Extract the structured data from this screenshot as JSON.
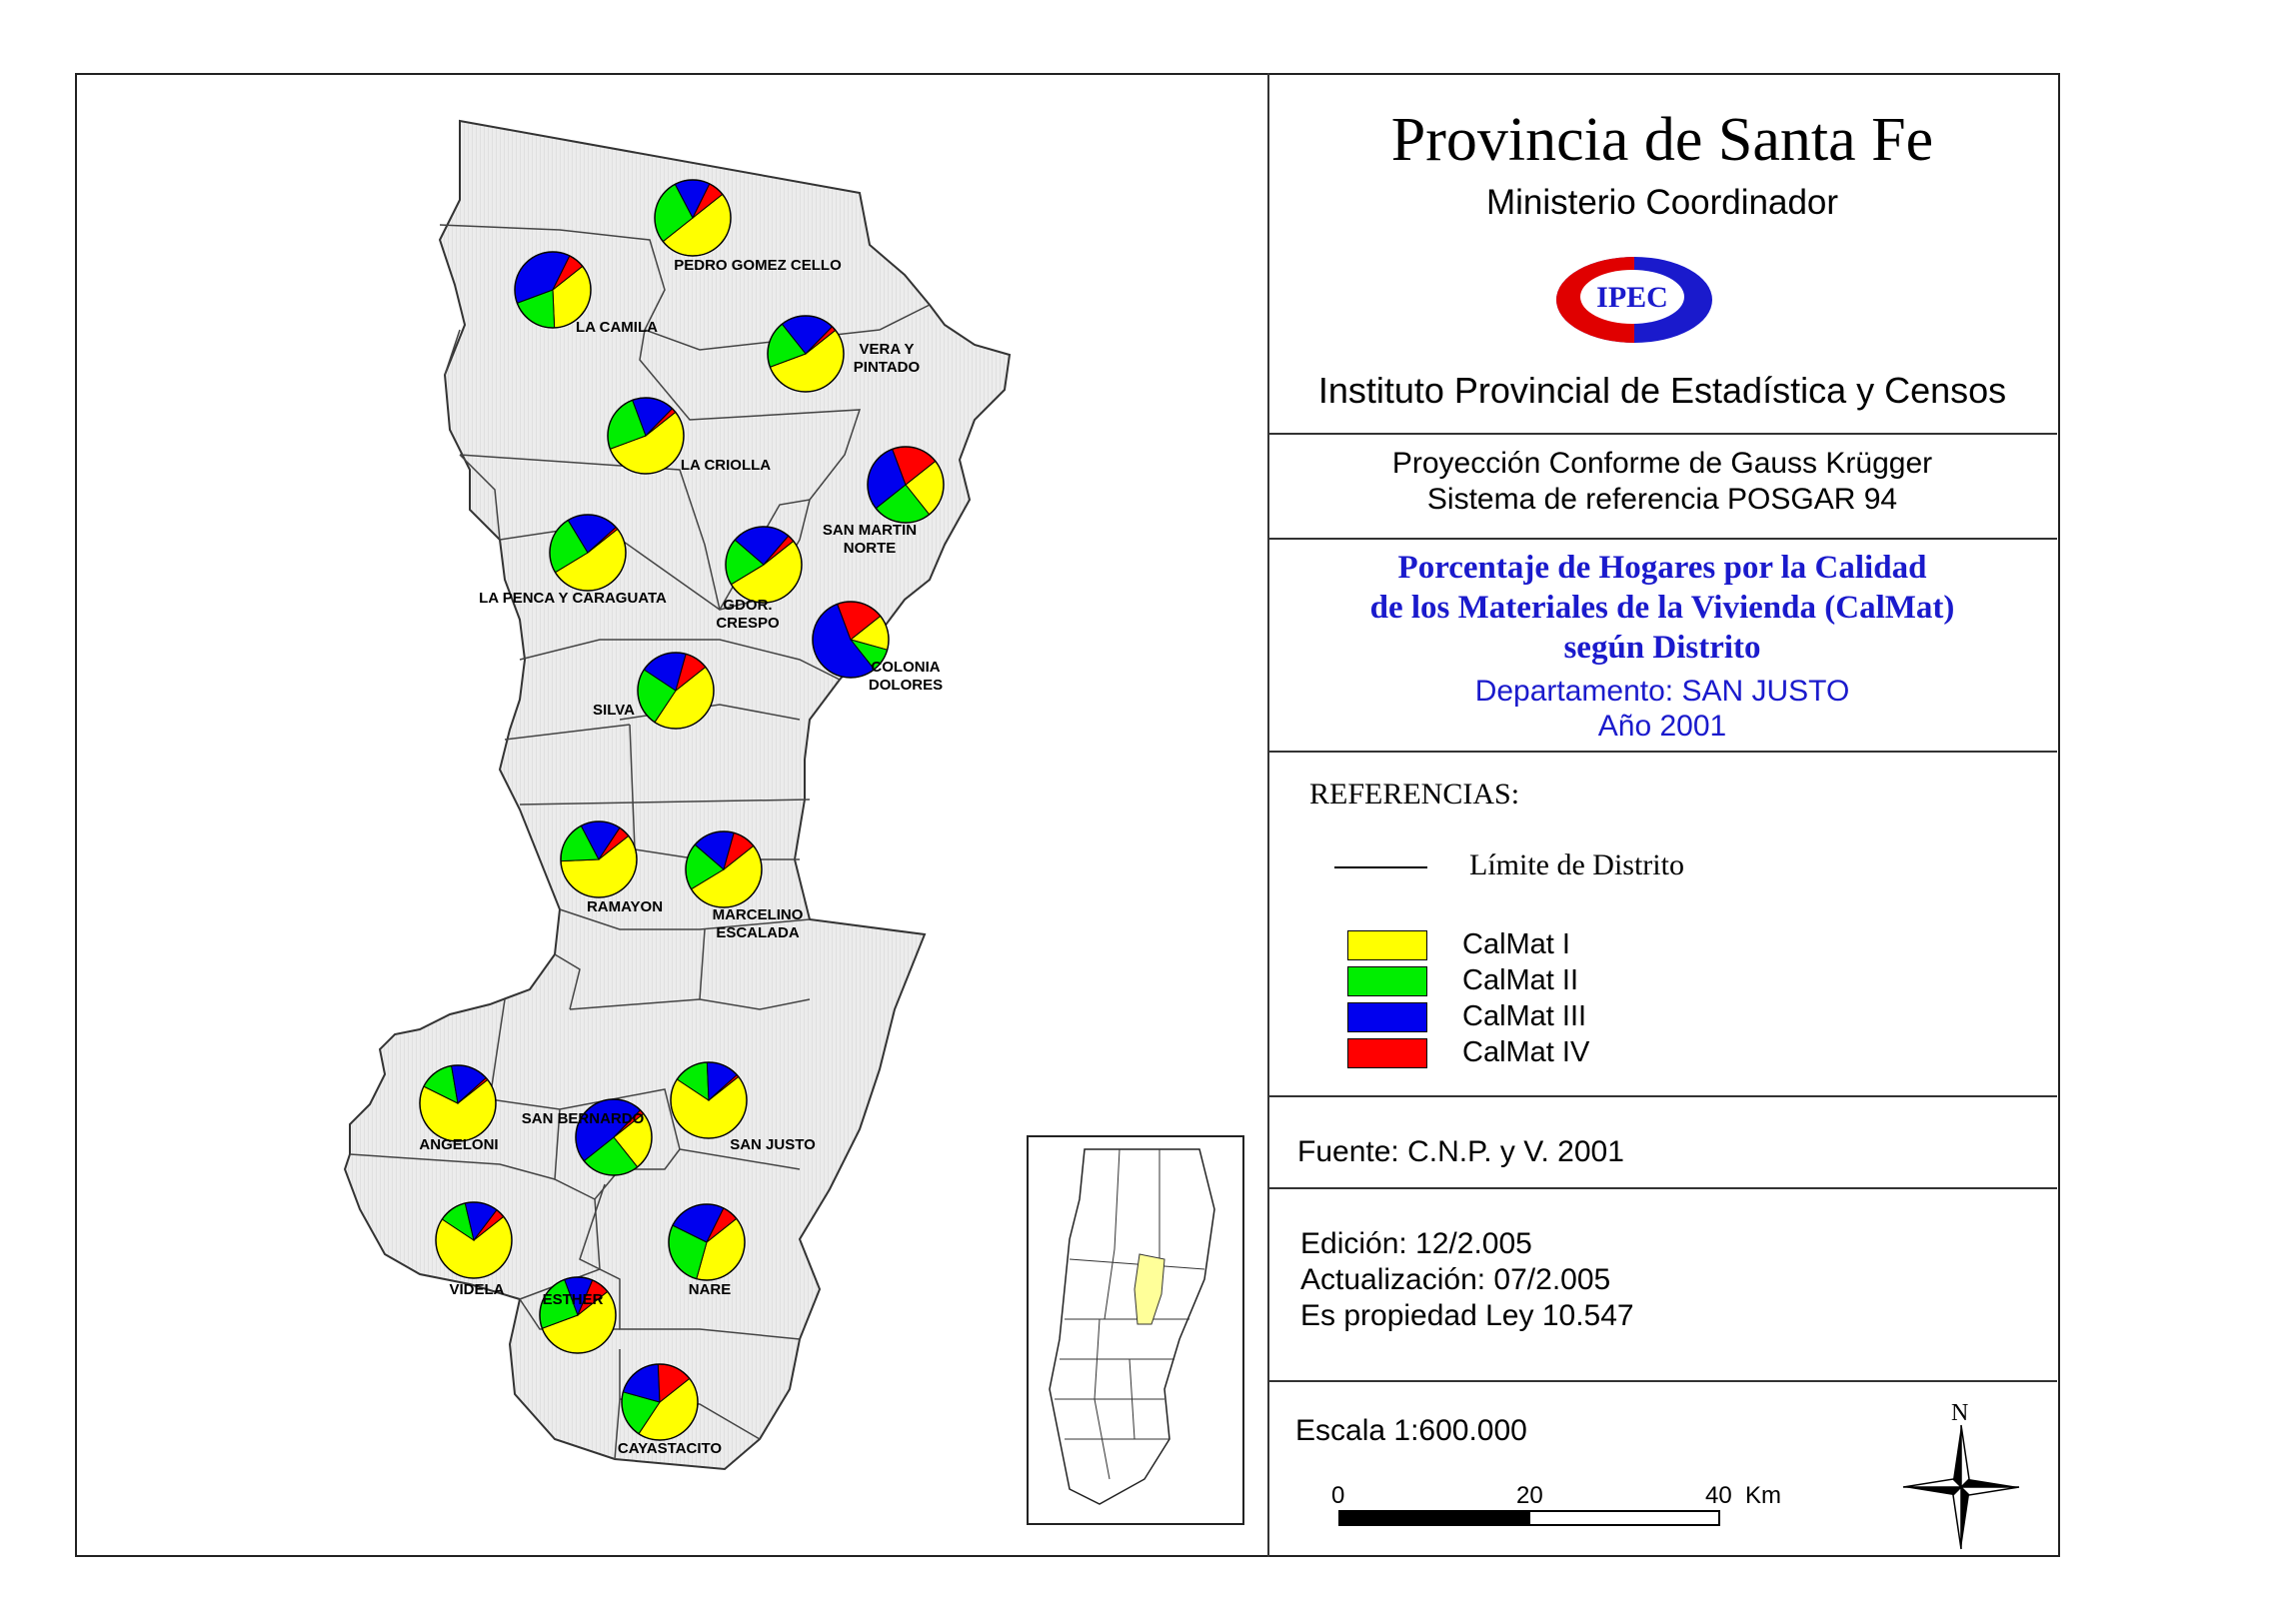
{
  "colors": {
    "calmat1": "#ffff00",
    "calmat2": "#00ee00",
    "calmat3": "#0000ee",
    "calmat4": "#ff0000",
    "mapfill": "#e8e8e8",
    "highlight": "#ffff99",
    "blue": "#1a1acc"
  },
  "header": {
    "title": "Provincia de Santa Fe",
    "ministry": "Ministerio Coordinador",
    "logo_text": "IPEC",
    "institute": "Instituto Provincial de Estadística y Censos"
  },
  "projection": {
    "line1": "Proyección Conforme de Gauss Krügger",
    "line2": "Sistema de referencia POSGAR 94"
  },
  "subject": {
    "line1": "Porcentaje de Hogares por la Calidad",
    "line2": "de los Materiales de la Vivienda (CalMat)",
    "line3": "según Distrito",
    "line4": "Departamento:  SAN JUSTO",
    "line5": "Año 2001"
  },
  "legend": {
    "title": "REFERENCIAS:",
    "boundary_label": "Límite de Distrito",
    "items": [
      {
        "label": "CalMat I",
        "color_key": "calmat1"
      },
      {
        "label": "CalMat II",
        "color_key": "calmat2"
      },
      {
        "label": "CalMat III",
        "color_key": "calmat3"
      },
      {
        "label": "CalMat IV",
        "color_key": "calmat4"
      }
    ]
  },
  "source": {
    "text": "Fuente:  C.N.P. y V. 2001"
  },
  "edition": {
    "line1": "Edición:  12/2.005",
    "line2": "Actualización:  07/2.005",
    "line3": "Es propiedad Ley 10.547"
  },
  "scale": {
    "label": "Escala 1:600.000",
    "ticks": [
      "0",
      "20",
      "40"
    ],
    "unit": "Km",
    "north": "N"
  },
  "districts": [
    {
      "name": "PEDRO GOMEZ CELLO",
      "lines": [
        "PEDRO GOMEZ CELLO"
      ],
      "values": [
        50,
        28,
        15,
        7
      ]
    },
    {
      "name": "LA CAMILA",
      "lines": [
        "LA CAMILA"
      ],
      "values": [
        35,
        20,
        38,
        7
      ]
    },
    {
      "name": "VERA Y PINTADO",
      "lines": [
        "VERA Y",
        "PINTADO"
      ],
      "values": [
        55,
        20,
        23,
        2
      ]
    },
    {
      "name": "LA CRIOLLA",
      "lines": [
        "LA CRIOLLA"
      ],
      "values": [
        55,
        25,
        18,
        2
      ]
    },
    {
      "name": "SAN MARTIN NORTE",
      "lines": [
        "SAN MARTIN",
        "NORTE"
      ],
      "values": [
        25,
        25,
        30,
        20
      ]
    },
    {
      "name": "LA PENCA Y CARAGUATA",
      "lines": [
        "LA PENCA Y CARAGUATA"
      ],
      "values": [
        52,
        25,
        22,
        1
      ]
    },
    {
      "name": "GDOR. CRESPO",
      "lines": [
        "GDOR.",
        "CRESPO"
      ],
      "values": [
        52,
        20,
        25,
        3
      ]
    },
    {
      "name": "COLONIA DOLORES",
      "lines": [
        "COLONIA",
        "DOLORES"
      ],
      "values": [
        15,
        10,
        55,
        20
      ]
    },
    {
      "name": "SILVA",
      "lines": [
        "SILVA"
      ],
      "values": [
        45,
        25,
        20,
        10
      ]
    },
    {
      "name": "RAMAYON",
      "lines": [
        "RAMAYON"
      ],
      "values": [
        60,
        18,
        17,
        5
      ]
    },
    {
      "name": "MARCELINO ESCALADA",
      "lines": [
        "MARCELINO",
        "ESCALADA"
      ],
      "values": [
        52,
        20,
        18,
        10
      ]
    },
    {
      "name": "ANGELONI",
      "lines": [
        "ANGELONI"
      ],
      "values": [
        68,
        15,
        16,
        1
      ]
    },
    {
      "name": "SAN BERNARDO",
      "lines": [
        "SAN BERNARDO"
      ],
      "values": [
        25,
        25,
        48,
        2
      ]
    },
    {
      "name": "SAN JUSTO",
      "lines": [
        "SAN JUSTO"
      ],
      "values": [
        70,
        15,
        14,
        1
      ]
    },
    {
      "name": "VIDELA",
      "lines": [
        "VIDELA"
      ],
      "values": [
        70,
        12,
        14,
        4
      ]
    },
    {
      "name": "NARE",
      "lines": [
        "NARE"
      ],
      "values": [
        40,
        28,
        25,
        7
      ]
    },
    {
      "name": "ESTHER",
      "lines": [
        "ESTHER"
      ],
      "values": [
        55,
        25,
        12,
        8
      ]
    },
    {
      "name": "CAYASTACITO",
      "lines": [
        "CAYASTACITO"
      ],
      "values": [
        45,
        20,
        20,
        15
      ]
    }
  ]
}
